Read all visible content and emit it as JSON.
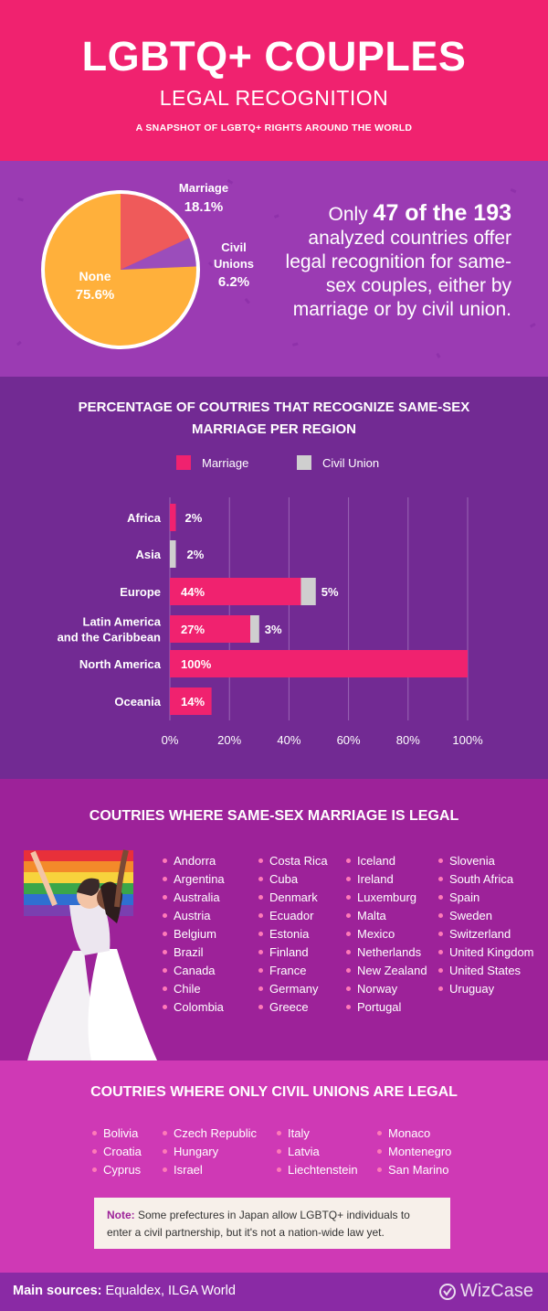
{
  "header": {
    "title": "LGBTQ+ COUPLES",
    "subtitle": "LEGAL RECOGNITION",
    "tagline": "A SNAPSHOT OF LGBTQ+ RIGHTS AROUND THE WORLD"
  },
  "pie_labels": {
    "marriage": "Marriage",
    "marriage_pct": "18.1%",
    "civil_1": "Civil",
    "civil_2": "Unions",
    "civil_pct": "6.2%",
    "none": "None",
    "none_pct": "75.6%"
  },
  "stat": {
    "lead": "Only ",
    "highlight": "47 of the 193",
    "rest": " analyzed countries offer legal recognition for same-sex couples, either by marriage or by civil union."
  },
  "chart_data": [
    {
      "type": "pie",
      "labels": [
        "Marriage",
        "Civil Unions",
        "None"
      ],
      "values": [
        18.1,
        6.2,
        75.6
      ],
      "colors": [
        "#ef5a5a",
        "#9b4dbb",
        "#ffb03b"
      ]
    },
    {
      "type": "bar",
      "orientation": "horizontal",
      "stacked": true,
      "title": "PERCENTAGE OF COUTRIES THAT RECOGNIZE SAME-SEX MARRIAGE PER REGION",
      "categories": [
        "Africa",
        "Asia",
        "Europe",
        "Latin America and the Caribbean",
        "North America",
        "Oceania"
      ],
      "series": [
        {
          "name": "Marriage",
          "color": "#f0226f",
          "values": [
            2,
            0,
            44,
            27,
            100,
            14
          ],
          "labels": [
            "2%",
            "",
            "44%",
            "27%",
            "100%",
            "14%"
          ]
        },
        {
          "name": "Civil Union",
          "color": "#cfcfcf",
          "values": [
            0,
            2,
            5,
            3,
            0,
            0
          ],
          "labels": [
            "",
            "2%",
            "5%",
            "3%",
            "",
            ""
          ]
        }
      ],
      "xlim": [
        0,
        100
      ],
      "xticks": [
        "0%",
        "20%",
        "40%",
        "60%",
        "80%",
        "100%"
      ],
      "grid": true,
      "legend": "top"
    }
  ],
  "marriage": {
    "title": "COUTRIES WHERE SAME-SEX MARRIAGE IS LEGAL",
    "columns": [
      [
        "Andorra",
        "Argentina",
        "Australia",
        "Austria",
        "Belgium",
        "Brazil",
        "Canada",
        "Chile",
        "Colombia"
      ],
      [
        "Costa Rica",
        "Cuba",
        "Denmark",
        "Ecuador",
        "Estonia",
        "Finland",
        "France",
        "Germany",
        "Greece"
      ],
      [
        "Iceland",
        "Ireland",
        "Luxemburg",
        "Malta",
        "Mexico",
        "Netherlands",
        "New Zealand",
        "Norway",
        "Portugal"
      ],
      [
        "Slovenia",
        "South Africa",
        "Spain",
        "Sweden",
        "Switzerland",
        "United Kingdom",
        "United States",
        "Uruguay"
      ]
    ]
  },
  "civil": {
    "title": "COUTRIES WHERE ONLY CIVIL UNIONS ARE LEGAL",
    "columns": [
      [
        "Bolivia",
        "Croatia",
        "Cyprus"
      ],
      [
        "Czech Republic",
        "Hungary",
        "Israel"
      ],
      [
        "Italy",
        "Latvia",
        "Liechtenstein"
      ],
      [
        "Monaco",
        "Montenegro",
        "San Marino"
      ]
    ]
  },
  "note": {
    "label": "Note:",
    "text": " Some prefectures in Japan allow LGBTQ+ individuals to enter a civil partnership, but it's not a nation-wide law yet."
  },
  "footer": {
    "label": "Main sources:",
    "sources": " Equaldex, ILGA World",
    "brand": "WizCase"
  }
}
